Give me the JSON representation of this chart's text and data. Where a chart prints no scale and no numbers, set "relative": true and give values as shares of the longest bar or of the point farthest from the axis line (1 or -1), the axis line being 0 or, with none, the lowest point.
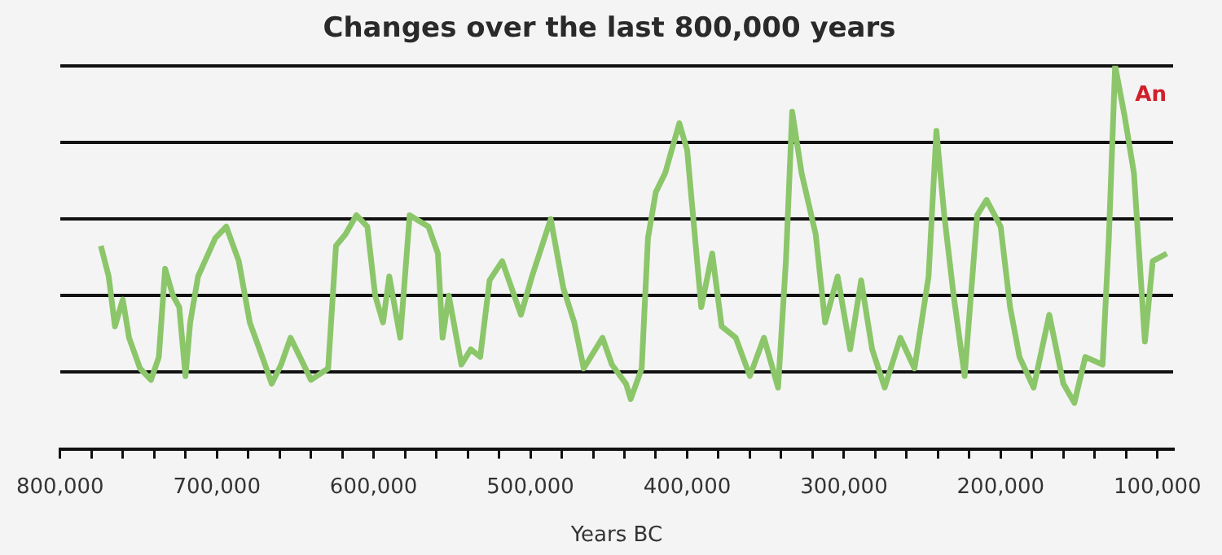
{
  "chart_data": {
    "type": "line",
    "title": "Changes over the last 800,000 years",
    "xlabel": "Years BC",
    "relative": true,
    "grid": "y",
    "legend": false,
    "marker": "none",
    "line_style": "solid",
    "tick_labels": "x",
    "annotations": [
      "An"
    ],
    "xlim": [
      800000,
      90000
    ],
    "xticks": [
      {
        "value": 800000,
        "label": "800,000"
      },
      {
        "value": 780000,
        "label": null
      },
      {
        "value": 760000,
        "label": null
      },
      {
        "value": 740000,
        "label": null
      },
      {
        "value": 720000,
        "label": null
      },
      {
        "value": 700000,
        "label": "700,000"
      },
      {
        "value": 680000,
        "label": null
      },
      {
        "value": 660000,
        "label": null
      },
      {
        "value": 640000,
        "label": null
      },
      {
        "value": 620000,
        "label": null
      },
      {
        "value": 600000,
        "label": "600,000"
      },
      {
        "value": 580000,
        "label": null
      },
      {
        "value": 560000,
        "label": null
      },
      {
        "value": 540000,
        "label": null
      },
      {
        "value": 520000,
        "label": null
      },
      {
        "value": 500000,
        "label": "500,000"
      },
      {
        "value": 480000,
        "label": null
      },
      {
        "value": 460000,
        "label": null
      },
      {
        "value": 440000,
        "label": null
      },
      {
        "value": 420000,
        "label": null
      },
      {
        "value": 400000,
        "label": "400,000"
      },
      {
        "value": 380000,
        "label": null
      },
      {
        "value": 360000,
        "label": null
      },
      {
        "value": 340000,
        "label": null
      },
      {
        "value": 320000,
        "label": null
      },
      {
        "value": 300000,
        "label": "300,000"
      },
      {
        "value": 280000,
        "label": null
      },
      {
        "value": 260000,
        "label": null
      },
      {
        "value": 240000,
        "label": null
      },
      {
        "value": 220000,
        "label": null
      },
      {
        "value": 200000,
        "label": "200,000"
      },
      {
        "value": 180000,
        "label": null
      },
      {
        "value": 160000,
        "label": null
      },
      {
        "value": 140000,
        "label": null
      },
      {
        "value": 120000,
        "label": null
      },
      {
        "value": 100000,
        "label": "100,000"
      }
    ],
    "x": [
      774000,
      769000,
      765000,
      760000,
      756000,
      749000,
      742000,
      737000,
      733000,
      728000,
      724000,
      720000,
      717000,
      712000,
      701000,
      694000,
      686000,
      679000,
      671000,
      665000,
      659000,
      653000,
      647000,
      640000,
      629000,
      624000,
      618000,
      611000,
      604000,
      599000,
      594000,
      590000,
      583000,
      577000,
      565000,
      559000,
      556000,
      552000,
      544000,
      538000,
      532000,
      526000,
      518000,
      506000,
      499000,
      487000,
      479000,
      472000,
      466000,
      454000,
      448000,
      439000,
      436000,
      429000,
      425000,
      420000,
      414000,
      405000,
      400000,
      391000,
      384000,
      378000,
      369000,
      360000,
      351000,
      342000,
      337000,
      333000,
      327000,
      318000,
      312000,
      304000,
      296000,
      289000,
      282000,
      274000,
      264000,
      255000,
      246000,
      241000,
      236000,
      230000,
      223000,
      215000,
      209000,
      200000,
      194000,
      188000,
      179000,
      169000,
      160000,
      153000,
      146000,
      135000,
      131000,
      127000,
      121000,
      115000,
      108000,
      103000,
      94000
    ],
    "series": [
      {
        "color": "#8cc66a",
        "values": [
          0.53,
          0.45,
          0.32,
          0.39,
          0.29,
          0.21,
          0.18,
          0.24,
          0.47,
          0.4,
          0.37,
          0.19,
          0.33,
          0.45,
          0.55,
          0.58,
          0.49,
          0.33,
          0.24,
          0.17,
          0.22,
          0.29,
          0.24,
          0.18,
          0.21,
          0.53,
          0.56,
          0.61,
          0.58,
          0.4,
          0.33,
          0.45,
          0.29,
          0.61,
          0.58,
          0.51,
          0.29,
          0.4,
          0.22,
          0.26,
          0.24,
          0.44,
          0.49,
          0.35,
          0.45,
          0.6,
          0.42,
          0.33,
          0.21,
          0.29,
          0.22,
          0.17,
          0.13,
          0.21,
          0.55,
          0.67,
          0.72,
          0.85,
          0.78,
          0.37,
          0.51,
          0.32,
          0.29,
          0.19,
          0.29,
          0.16,
          0.49,
          0.88,
          0.72,
          0.56,
          0.33,
          0.45,
          0.26,
          0.44,
          0.26,
          0.16,
          0.29,
          0.21,
          0.45,
          0.83,
          0.61,
          0.4,
          0.19,
          0.61,
          0.65,
          0.58,
          0.37,
          0.24,
          0.16,
          0.35,
          0.17,
          0.12,
          0.24,
          0.22,
          0.55,
          1,
          0.87,
          0.72,
          0.28,
          0.49,
          0.51
        ]
      }
    ]
  }
}
